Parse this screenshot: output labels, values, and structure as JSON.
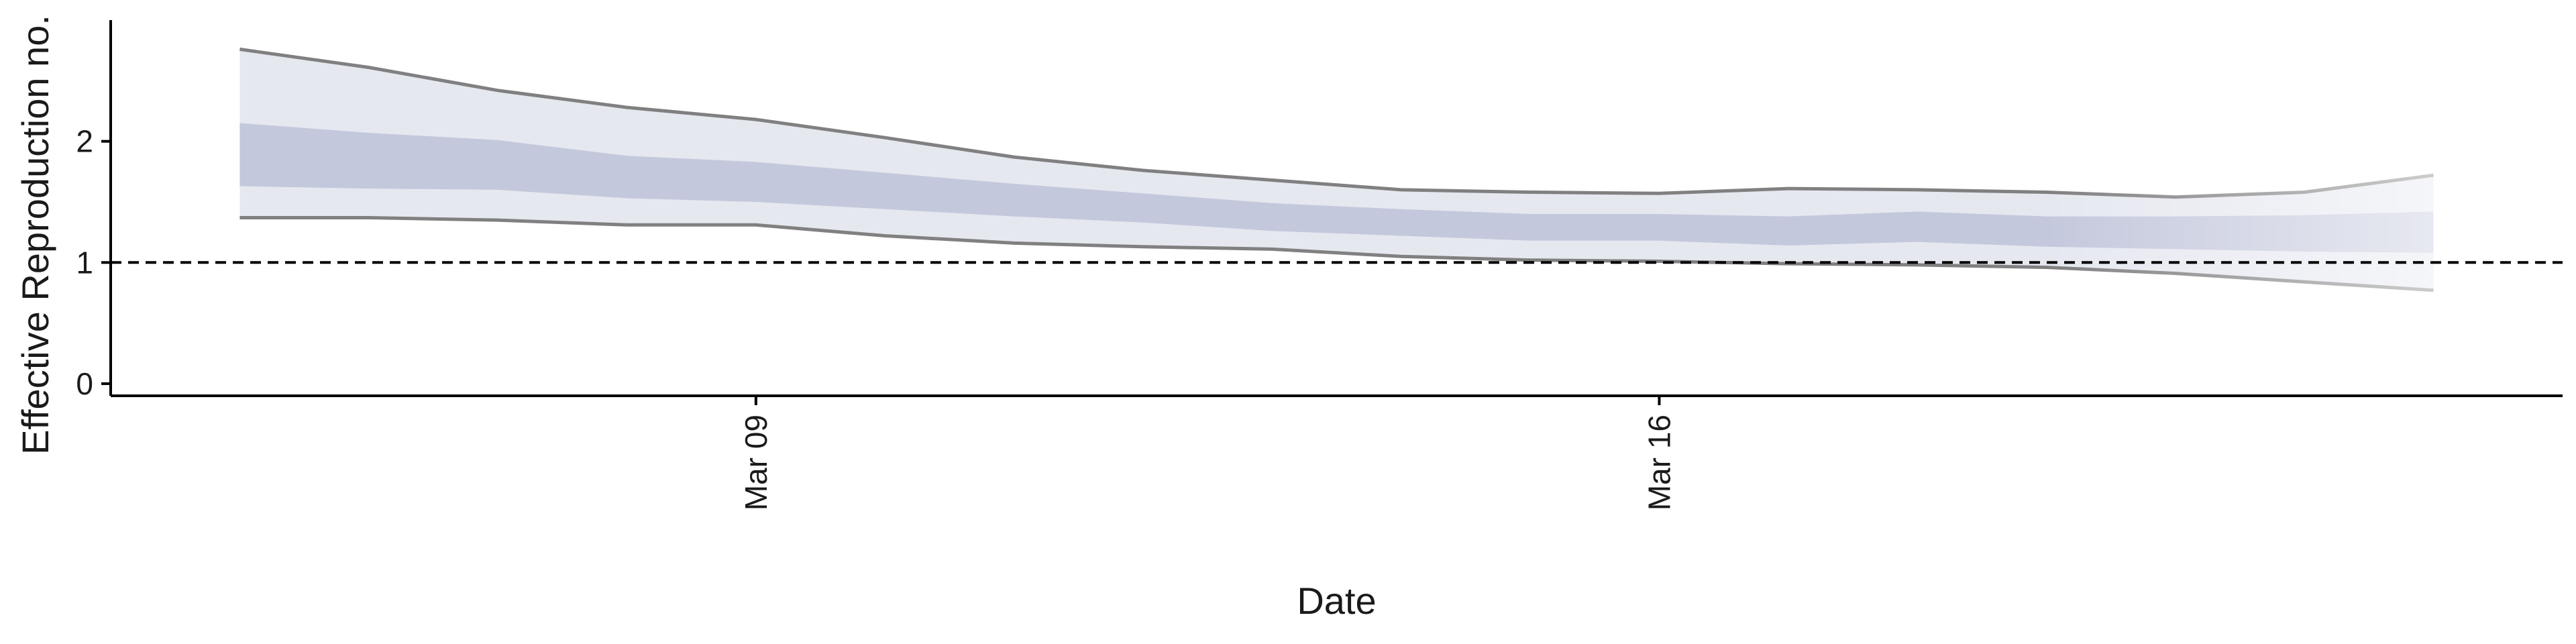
{
  "chart_data": {
    "type": "area",
    "xlabel": "Date",
    "ylabel": "Effective Reproduction no.",
    "x_ticks": [
      {
        "date": "2020-03-09",
        "label": "Mar 09"
      },
      {
        "date": "2020-03-16",
        "label": "Mar 16"
      }
    ],
    "y_ticks": [
      0,
      1,
      2
    ],
    "xlim": [
      "2020-03-04",
      "2020-03-23"
    ],
    "ylim": [
      -0.1,
      3.0
    ],
    "reference_line": {
      "y": 1,
      "style": "dashed"
    },
    "grid": false,
    "legend": "none",
    "colors": {
      "outer_band": "#e6e8f0",
      "inner_band": "#c4c8dc",
      "bound_line": "#808080",
      "reference_line": "#000000"
    },
    "series": {
      "dates": [
        "2020-03-05",
        "2020-03-06",
        "2020-03-07",
        "2020-03-08",
        "2020-03-09",
        "2020-03-10",
        "2020-03-11",
        "2020-03-12",
        "2020-03-13",
        "2020-03-14",
        "2020-03-15",
        "2020-03-16",
        "2020-03-17",
        "2020-03-18",
        "2020-03-19",
        "2020-03-20",
        "2020-03-21",
        "2020-03-22"
      ],
      "lower_90": [
        1.37,
        1.37,
        1.35,
        1.31,
        1.31,
        1.22,
        1.16,
        1.13,
        1.11,
        1.05,
        1.02,
        1.01,
        0.99,
        0.98,
        0.96,
        0.91,
        0.84,
        0.77
      ],
      "lower_50": [
        1.63,
        1.61,
        1.6,
        1.53,
        1.5,
        1.44,
        1.38,
        1.33,
        1.26,
        1.22,
        1.18,
        1.18,
        1.14,
        1.17,
        1.13,
        1.11,
        1.09,
        1.08
      ],
      "upper_50": [
        2.15,
        2.07,
        2.01,
        1.88,
        1.83,
        1.74,
        1.65,
        1.57,
        1.49,
        1.44,
        1.4,
        1.4,
        1.38,
        1.42,
        1.38,
        1.38,
        1.39,
        1.42
      ],
      "upper_90": [
        2.76,
        2.61,
        2.42,
        2.28,
        2.18,
        2.03,
        1.87,
        1.76,
        1.68,
        1.6,
        1.58,
        1.57,
        1.61,
        1.6,
        1.58,
        1.54,
        1.58,
        1.72
      ]
    }
  }
}
